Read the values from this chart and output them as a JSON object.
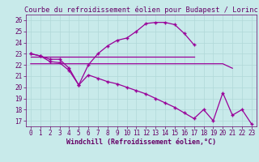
{
  "bg_color": "#c8eaea",
  "grid_color": "#b0d8d8",
  "line_color": "#990099",
  "marker": "+",
  "xlabel": "Windchill (Refroidissement éolien,°C)",
  "xlabel_color": "#660066",
  "ylim": [
    16.5,
    26.5
  ],
  "xlim": [
    -0.5,
    23.5
  ],
  "yticks": [
    17,
    18,
    19,
    20,
    21,
    22,
    23,
    24,
    25,
    26
  ],
  "xticks": [
    0,
    1,
    2,
    3,
    4,
    5,
    6,
    7,
    8,
    9,
    10,
    11,
    12,
    13,
    14,
    15,
    16,
    17,
    18,
    19,
    20,
    21,
    22,
    23
  ],
  "series1_x": [
    0,
    1,
    2,
    3,
    4,
    5,
    6,
    7,
    8,
    9,
    10,
    11,
    12,
    13,
    14,
    15,
    16,
    17
  ],
  "series1_y": [
    23.0,
    22.8,
    22.5,
    22.5,
    21.7,
    20.2,
    22.0,
    23.0,
    23.7,
    24.2,
    24.4,
    25.0,
    25.7,
    25.8,
    25.8,
    25.6,
    24.8,
    23.8
  ],
  "series2_x": [
    0,
    1,
    2,
    3,
    4,
    5,
    6,
    7,
    8,
    9,
    10,
    11,
    12,
    13,
    14,
    15,
    16,
    17,
    18,
    19,
    20,
    21,
    22,
    23
  ],
  "series2_y": [
    23.0,
    22.8,
    22.3,
    22.2,
    21.5,
    20.2,
    21.1,
    20.8,
    20.5,
    20.3,
    20.0,
    19.7,
    19.4,
    19.0,
    18.6,
    18.2,
    17.7,
    17.2,
    18.0,
    17.0,
    19.5,
    17.5,
    18.0,
    16.7
  ],
  "series3_x": [
    0,
    17
  ],
  "series3_y": [
    22.7,
    22.7
  ],
  "series4_x": [
    0,
    20,
    21
  ],
  "series4_y": [
    22.1,
    22.1,
    21.7
  ],
  "title": "Courbe du refroidissement éolien pour Budapest / Lorinc",
  "title_color": "#660066",
  "tick_color": "#660066",
  "tick_fontsize": 5.5,
  "xlabel_fontsize": 6,
  "title_fontsize": 6.2
}
